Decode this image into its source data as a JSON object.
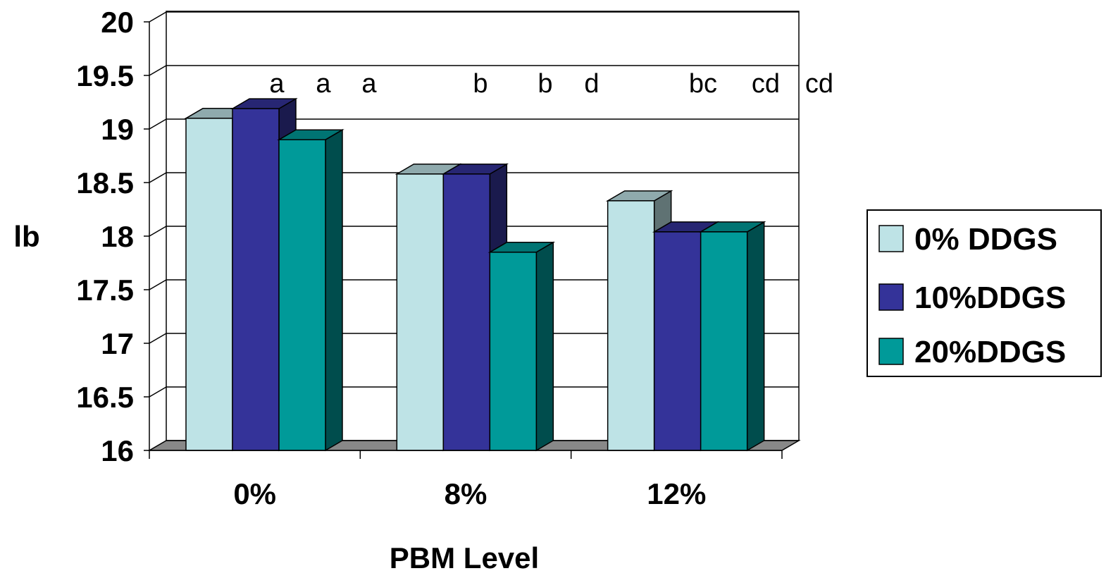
{
  "chart_data": {
    "type": "bar",
    "title": "",
    "xlabel": "PBM Level",
    "ylabel": "lb",
    "categories": [
      "0%",
      "8%",
      "12%"
    ],
    "series": [
      {
        "name": "0% DDGS",
        "values": [
          19.1,
          18.58,
          18.33
        ],
        "color": "#BEE3E6"
      },
      {
        "name": "10%DDGS",
        "values": [
          19.19,
          18.58,
          18.04
        ],
        "color": "#343399"
      },
      {
        "name": "20%DDGS",
        "values": [
          18.9,
          17.85,
          18.04
        ],
        "color": "#009A99"
      }
    ],
    "ylim": [
      16,
      20
    ],
    "yticks": [
      "16",
      "16.5",
      "17",
      "17.5",
      "18",
      "18.5",
      "19",
      "19.5",
      "20"
    ],
    "grid": true,
    "legend_position": "right",
    "annotations": [
      "a",
      "a",
      "a",
      "b",
      "b",
      "d",
      "bc",
      "cd",
      "cd"
    ]
  }
}
